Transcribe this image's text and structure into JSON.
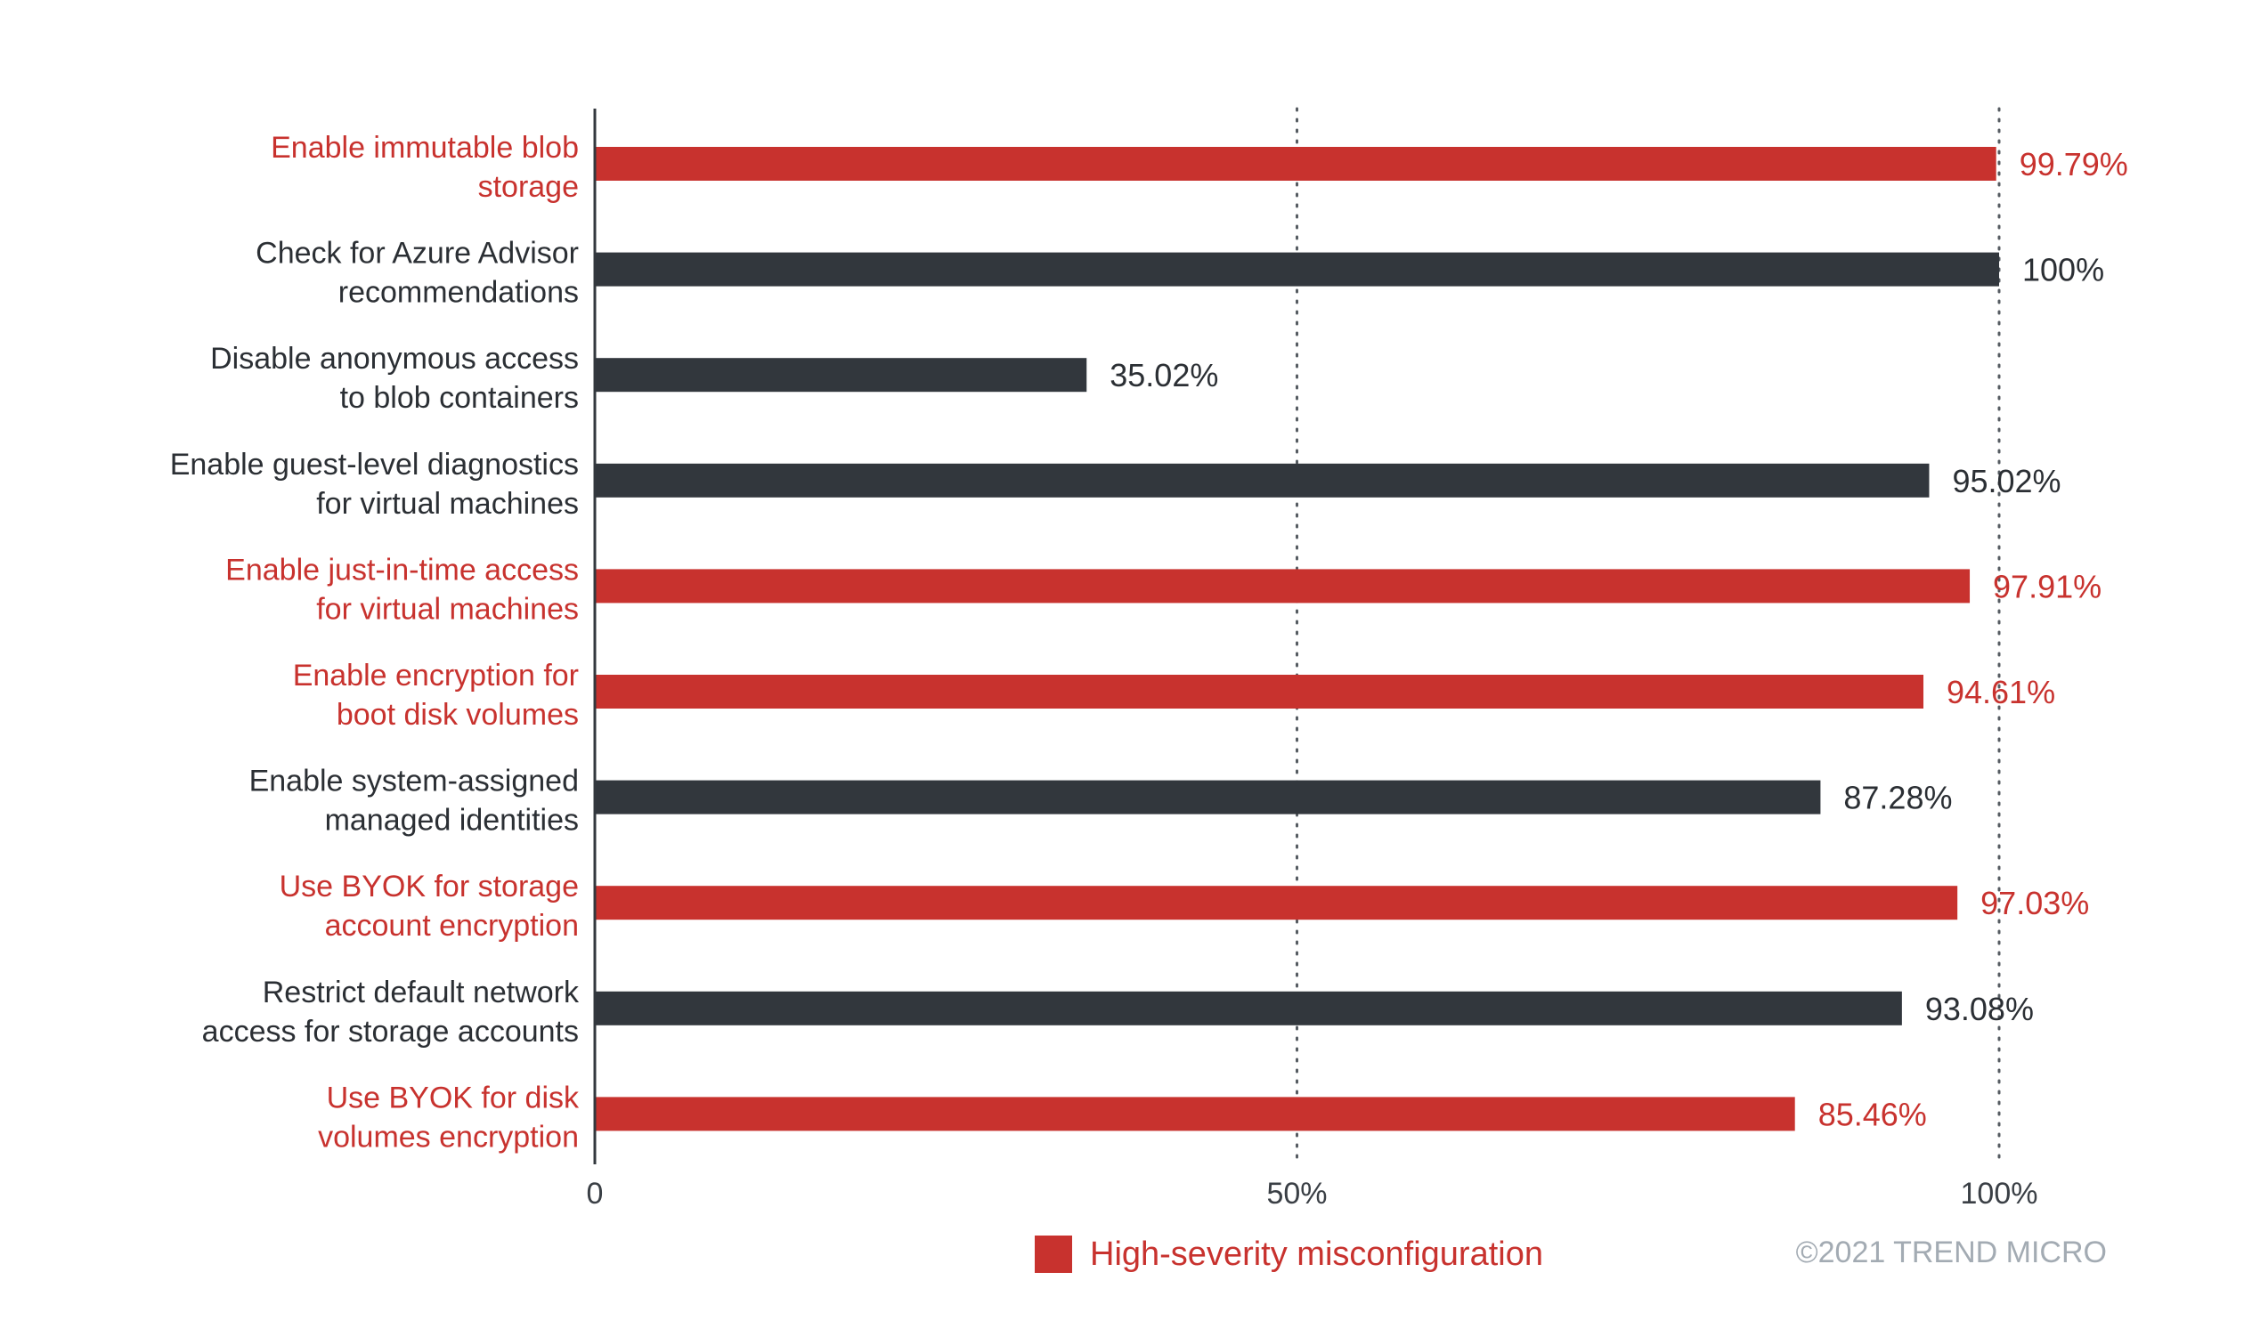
{
  "chart_data": {
    "type": "bar",
    "orientation": "horizontal",
    "categories": [
      [
        "Enable immutable blob",
        "storage"
      ],
      [
        "Check for Azure Advisor",
        "recommendations"
      ],
      [
        "Disable anonymous access",
        "to blob containers"
      ],
      [
        "Enable guest-level diagnostics",
        "for virtual machines"
      ],
      [
        "Enable just-in-time access",
        "for virtual machines"
      ],
      [
        "Enable encryption for",
        "boot disk volumes"
      ],
      [
        "Enable system-assigned",
        "managed identities"
      ],
      [
        "Use BYOK for storage",
        "account encryption"
      ],
      [
        "Restrict default network",
        "access for storage accounts"
      ],
      [
        "Use BYOK for disk",
        "volumes encryption"
      ]
    ],
    "values": [
      99.79,
      100,
      35.02,
      95.02,
      97.91,
      94.61,
      87.28,
      97.03,
      93.08,
      85.46
    ],
    "value_labels": [
      "99.79%",
      "100%",
      "35.02%",
      "95.02%",
      "97.91%",
      "94.61%",
      "87.28%",
      "97.03%",
      "93.08%",
      "85.46%"
    ],
    "high_severity": [
      true,
      false,
      false,
      false,
      true,
      true,
      false,
      true,
      false,
      true
    ],
    "xlim": [
      0,
      100
    ],
    "xticks": [
      0,
      50,
      100
    ],
    "xtick_labels": [
      "0",
      "50%",
      "100%"
    ],
    "grid": "vertical dotted at 50% and 100%",
    "legend": {
      "label": "High-severity misconfiguration",
      "placement": "bottom-center"
    },
    "colors": {
      "high_severity": "#c8322e",
      "other": "#32373d",
      "label_other": "#2b2f34",
      "axis": "#33383e",
      "grid": "#555b61",
      "copyright": "#a3abb3"
    }
  },
  "copyright": "©2021 TREND MICRO"
}
